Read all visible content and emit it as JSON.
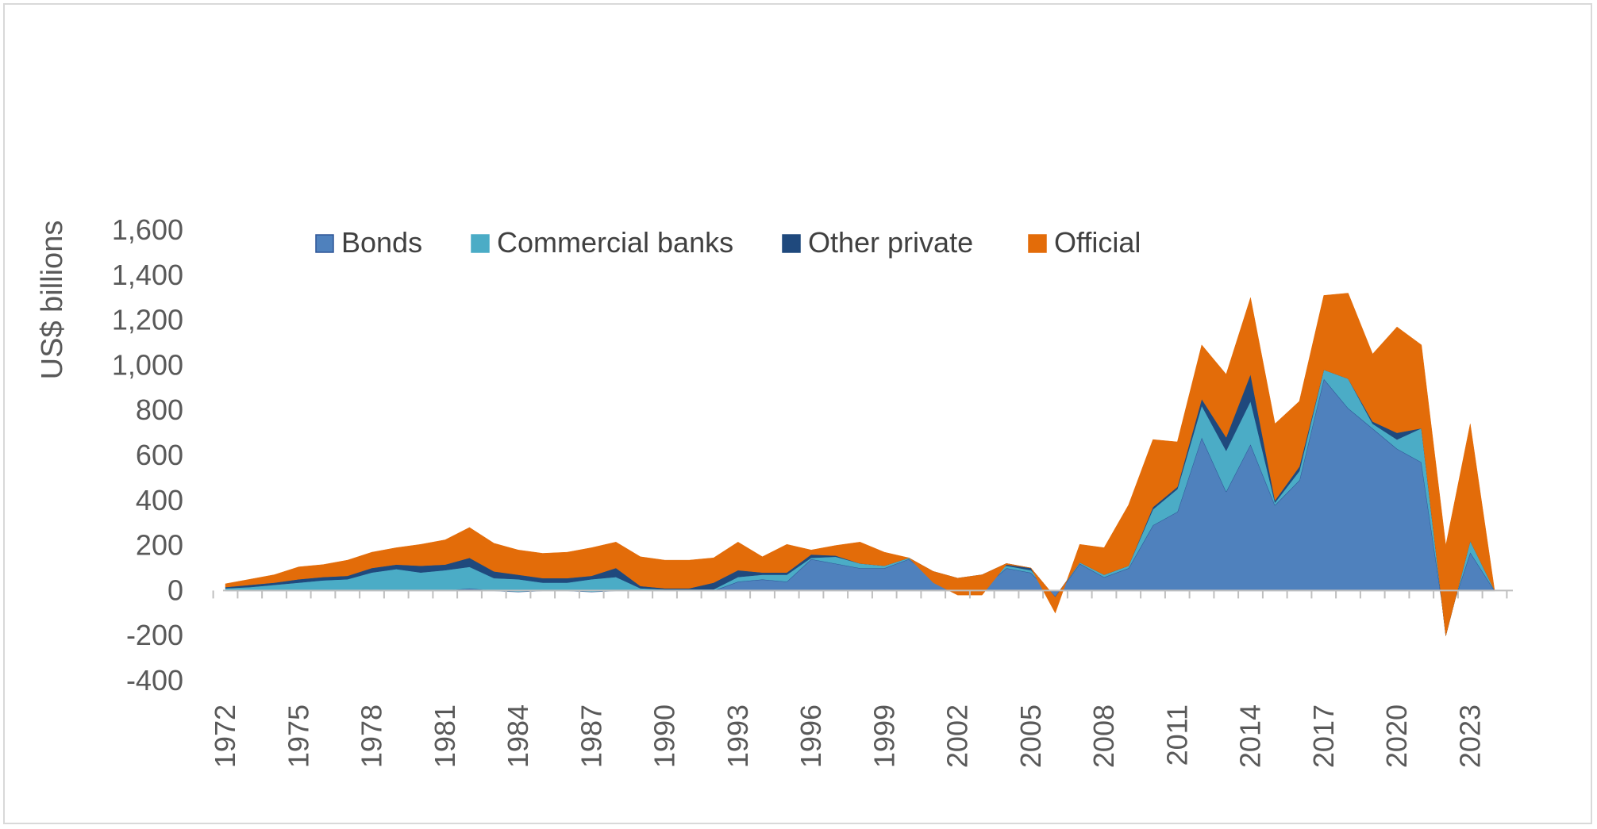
{
  "chart_data": {
    "type": "area",
    "stacked": true,
    "ylabel": "US$ billions",
    "ylim": [
      -400,
      1600
    ],
    "yticks": [
      -400,
      -200,
      0,
      200,
      400,
      600,
      800,
      1000,
      1200,
      1400,
      1600
    ],
    "ytick_labels": [
      "-400",
      "-200",
      "0",
      "200",
      "400",
      "600",
      "800",
      "1,000",
      "1,200",
      "1,400",
      "1,600"
    ],
    "x": [
      1972,
      1973,
      1974,
      1975,
      1976,
      1977,
      1978,
      1979,
      1980,
      1981,
      1982,
      1983,
      1984,
      1985,
      1986,
      1987,
      1988,
      1989,
      1990,
      1991,
      1992,
      1993,
      1994,
      1995,
      1996,
      1997,
      1998,
      1999,
      2000,
      2001,
      2002,
      2003,
      2004,
      2005,
      2006,
      2007,
      2008,
      2009,
      2010,
      2011,
      2012,
      2013,
      2014,
      2015,
      2016,
      2017,
      2018,
      2019,
      2020,
      2021,
      2022,
      2023,
      2024
    ],
    "xtick_labels": [
      "1972",
      "1975",
      "1978",
      "1981",
      "1984",
      "1987",
      "1990",
      "1993",
      "1996",
      "1999",
      "2002",
      "2005",
      "2008",
      "2011",
      "2014",
      "2017",
      "2020",
      "2023"
    ],
    "grid": false,
    "legend_position": "top",
    "series": [
      {
        "name": "Bonds",
        "color": "#4F81BD",
        "values": [
          0,
          0,
          0,
          0,
          0,
          0,
          0,
          0,
          0,
          0,
          10,
          0,
          -5,
          0,
          0,
          -5,
          0,
          0,
          0,
          0,
          0,
          40,
          50,
          40,
          140,
          120,
          100,
          100,
          140,
          60,
          10,
          10,
          100,
          80,
          -30,
          120,
          60,
          100,
          290,
          350,
          680,
          440,
          650,
          380,
          490,
          940,
          810,
          720,
          630,
          570,
          -160,
          170,
          0
        ]
      },
      {
        "name": "Commercial banks",
        "color": "#4BACC6",
        "values": [
          10,
          15,
          25,
          35,
          45,
          50,
          80,
          95,
          80,
          90,
          95,
          55,
          55,
          35,
          35,
          55,
          60,
          10,
          5,
          5,
          5,
          20,
          20,
          30,
          5,
          30,
          20,
          10,
          5,
          15,
          35,
          50,
          10,
          10,
          0,
          5,
          10,
          10,
          70,
          100,
          140,
          180,
          190,
          10,
          40,
          40,
          130,
          20,
          40,
          150,
          -40,
          50,
          0
        ]
      },
      {
        "name": "Other private",
        "color": "#1F497D",
        "values": [
          5,
          10,
          10,
          15,
          15,
          15,
          20,
          20,
          30,
          25,
          40,
          30,
          20,
          20,
          20,
          15,
          40,
          10,
          5,
          5,
          30,
          30,
          10,
          10,
          15,
          5,
          0,
          0,
          0,
          10,
          10,
          10,
          10,
          10,
          0,
          0,
          0,
          0,
          10,
          10,
          30,
          60,
          120,
          10,
          20,
          0,
          0,
          10,
          30,
          0,
          0,
          0,
          0
        ]
      },
      {
        "name": "Official",
        "color": "#E36C09",
        "values": [
          15,
          25,
          35,
          55,
          55,
          70,
          70,
          75,
          95,
          110,
          135,
          125,
          110,
          110,
          115,
          125,
          115,
          130,
          125,
          125,
          110,
          125,
          70,
          125,
          20,
          45,
          95,
          60,
          0,
          -50,
          -75,
          -90,
          -5,
          0,
          -70,
          80,
          120,
          270,
          300,
          200,
          240,
          280,
          340,
          340,
          290,
          330,
          380,
          300,
          470,
          370,
          400,
          520,
          0
        ]
      }
    ]
  }
}
